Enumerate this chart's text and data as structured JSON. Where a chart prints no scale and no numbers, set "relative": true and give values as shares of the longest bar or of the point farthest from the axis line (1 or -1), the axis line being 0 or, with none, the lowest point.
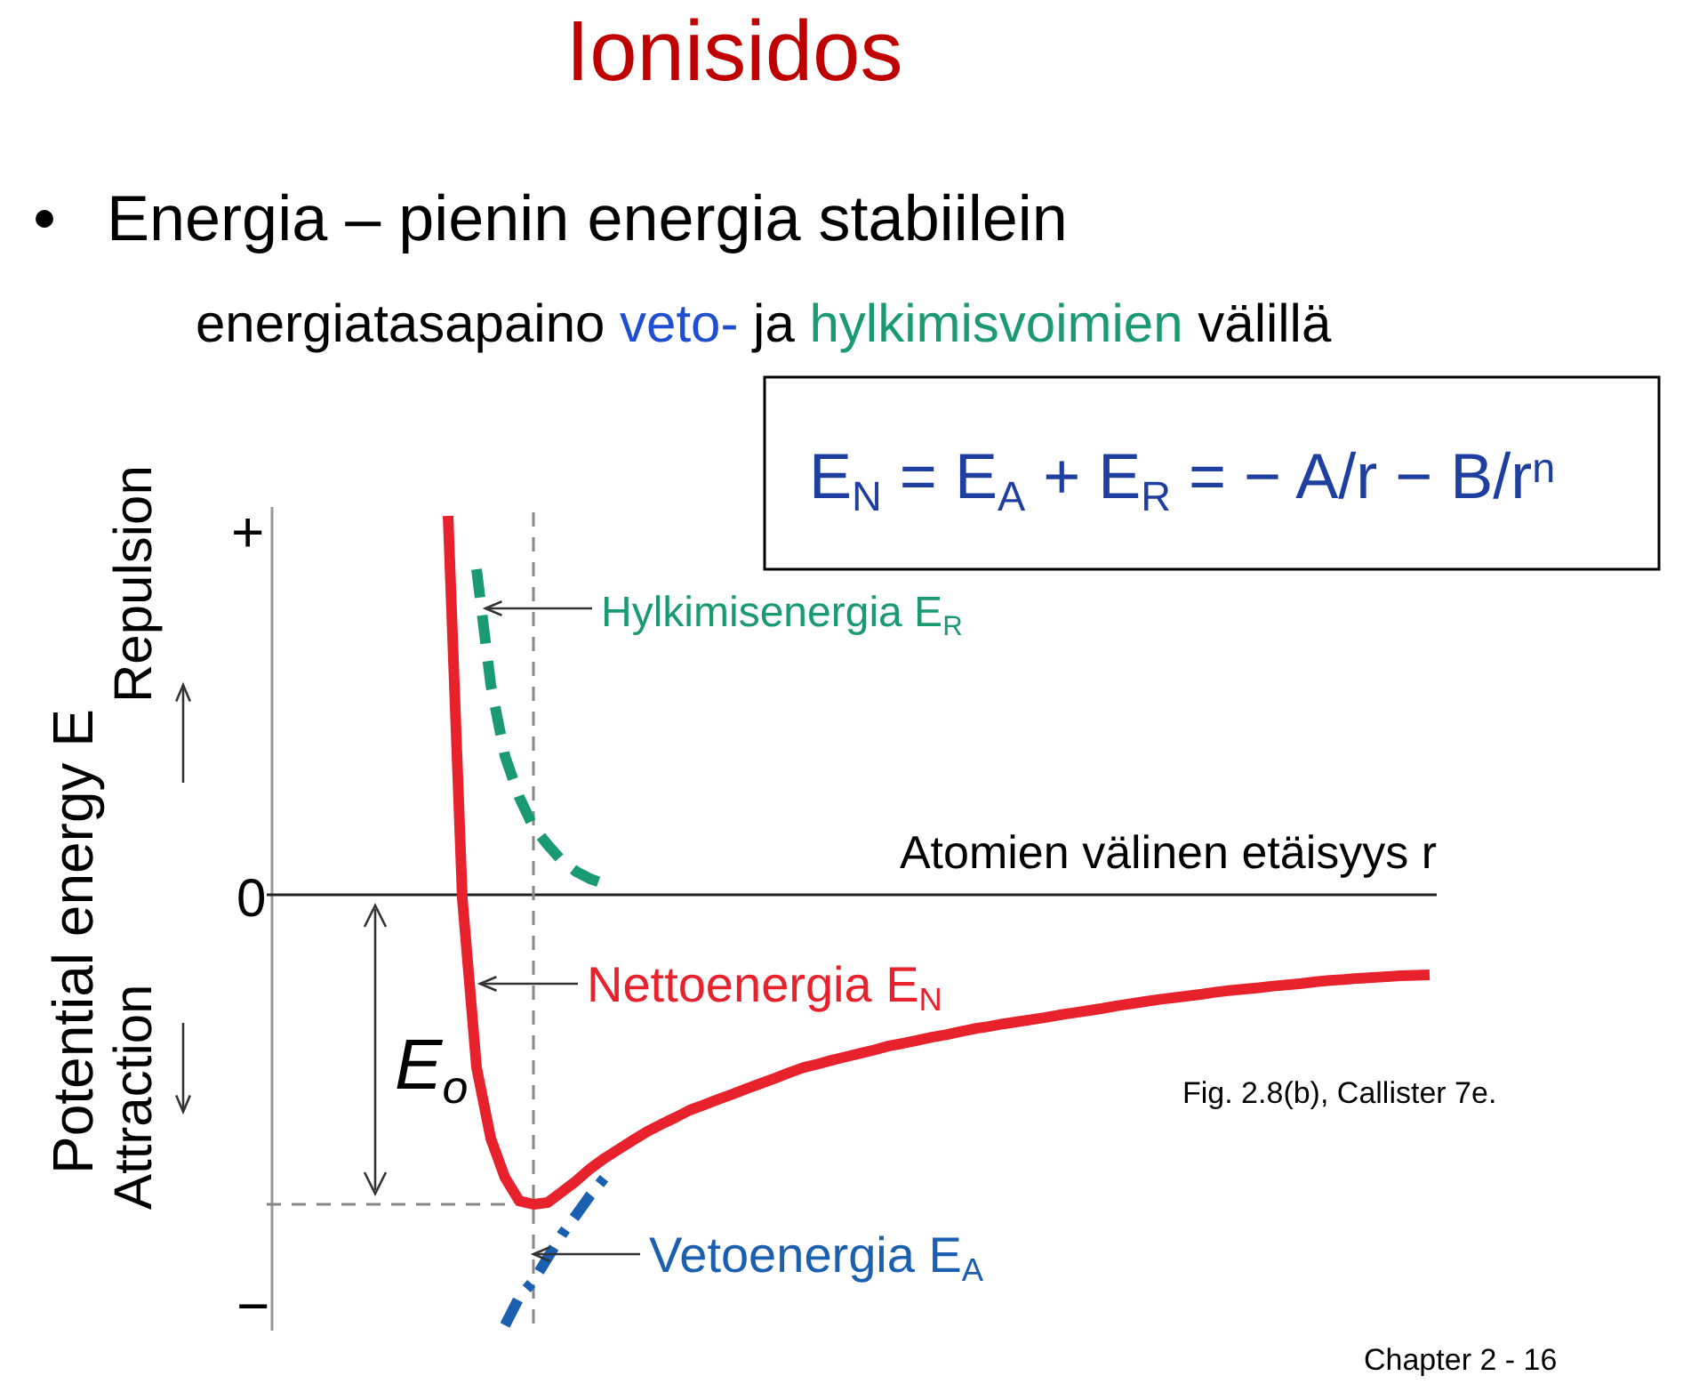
{
  "chart_data": {
    "type": "line",
    "title": "Ionisidos",
    "xlabel": "Atomien välinen etäisyys r",
    "relative": true,
    "marker": "none",
    "legend": false,
    "categories": [
      null,
      null,
      null,
      null,
      null,
      null,
      null,
      null,
      null,
      null,
      null,
      null,
      null,
      null,
      null,
      null,
      null,
      null,
      null,
      null,
      null,
      null,
      null,
      null,
      null,
      null,
      null,
      null,
      null,
      null,
      null,
      null,
      null,
      null,
      null,
      null,
      null,
      null,
      null,
      null,
      null,
      null,
      null,
      null,
      null,
      null,
      null,
      null,
      null,
      null,
      null,
      null,
      null,
      null,
      null,
      null,
      null,
      null,
      null,
      null,
      null,
      null,
      null,
      null,
      null,
      null,
      null,
      null,
      null,
      null
    ],
    "series": [
      {
        "name": "Nettoenergia E$_{N}$",
        "color": "#e8222c",
        "line_style": "solid",
        "values": [
          0.88,
          -0.008,
          -0.401,
          -0.566,
          -0.657,
          -0.711,
          -0.719,
          -0.715,
          -0.69,
          -0.665,
          -0.636,
          -0.612,
          -0.591,
          -0.57,
          -0.55,
          -0.533,
          -0.517,
          -0.5,
          -0.488,
          -0.475,
          -0.463,
          -0.45,
          -0.438,
          -0.426,
          -0.413,
          -0.401,
          -0.393,
          -0.384,
          -0.376,
          -0.368,
          -0.36,
          -0.351,
          -0.345,
          -0.338,
          -0.331,
          -0.325,
          -0.318,
          -0.311,
          -0.306,
          -0.3,
          -0.295,
          -0.29,
          -0.285,
          -0.279,
          -0.274,
          -0.269,
          -0.264,
          -0.258,
          -0.253,
          -0.248,
          -0.243,
          -0.239,
          -0.235,
          -0.231,
          -0.226,
          -0.222,
          -0.219,
          -0.216,
          -0.212,
          -0.209,
          -0.206,
          -0.202,
          -0.199,
          -0.197,
          -0.194,
          -0.192,
          -0.19,
          -0.188,
          -0.187,
          -0.186
        ]
      },
      {
        "name": "Hylkimisenergia E$_{R}$",
        "color": "#1a9a72",
        "line_style": "dashed",
        "values": [
          null,
          null,
          0.756,
          0.488,
          0.322,
          0.227,
          0.157,
          0.116,
          0.079,
          0.054,
          0.037,
          0.025,
          null,
          null,
          null,
          null,
          null,
          null,
          null,
          null,
          null,
          null,
          null,
          null,
          null,
          null,
          null,
          null,
          null,
          null,
          null,
          null,
          null,
          null,
          null,
          null,
          null,
          null,
          null,
          null,
          null,
          null,
          null,
          null,
          null,
          null,
          null,
          null,
          null,
          null,
          null,
          null,
          null,
          null,
          null,
          null,
          null,
          null,
          null,
          null,
          null,
          null,
          null,
          null,
          null,
          null,
          null,
          null,
          null,
          null
        ]
      },
      {
        "name": "Vetoenergia E$_{A}$",
        "color": "#1a5fb0",
        "line_style": "dashed",
        "values": [
          null,
          null,
          null,
          null,
          -1,
          -0.935,
          -0.897,
          -0.843,
          -0.789,
          -0.744,
          -0.698,
          -0.657,
          null,
          null,
          null,
          null,
          null,
          null,
          null,
          null,
          null,
          null,
          null,
          null,
          null,
          null,
          null,
          null,
          null,
          null,
          null,
          null,
          null,
          null,
          null,
          null,
          null,
          null,
          null,
          null,
          null,
          null,
          null,
          null,
          null,
          null,
          null,
          null,
          null,
          null,
          null,
          null,
          null,
          null,
          null,
          null,
          null,
          null,
          null,
          null,
          null,
          null,
          null,
          null,
          null,
          null,
          null,
          null,
          null,
          null
        ]
      }
    ],
    "ref_lines": [
      {
        "axis": "y",
        "value": -0.719,
        "color": "#888888",
        "line_style": "dashed"
      }
    ],
    "annotations": [
      "Energia – pienin energia stabiilein",
      "energiatasapaino veto- ja hylkimisvoimien välillä",
      "E$_{N}$ = E$_{A}$ + E$_{R}$ = − A/r − B/r$^{n}$",
      "E$_{o}$",
      "Repulsion",
      "Attraction",
      "+",
      "0",
      "−",
      "Fig. 2.8(b), Callister 7e.",
      "Chapter 2 - 16",
      "Potential energy E"
    ]
  }
}
